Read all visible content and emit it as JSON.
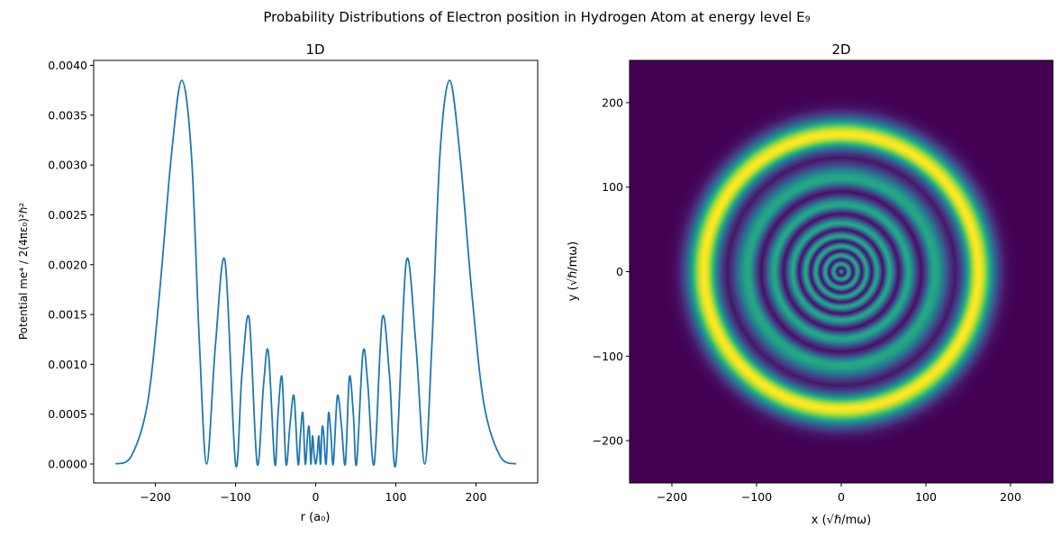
{
  "figure": {
    "suptitle": "Probability Distributions of Electron position in Hydrogen Atom at energy level E₉"
  },
  "chart_data": [
    {
      "type": "line",
      "title": "1D",
      "xlabel": "r (a₀)",
      "ylabel": "Potential me⁴ / 2(4πε₀)²ℏ²",
      "xlim": [
        -277,
        277
      ],
      "ylim": [
        -0.00019,
        0.00405
      ],
      "x_ticks": [
        -200,
        -100,
        0,
        100,
        200
      ],
      "y_ticks": [
        0.0,
        0.0005,
        0.001,
        0.0015,
        0.002,
        0.0025,
        0.003,
        0.0035,
        0.004
      ],
      "y_tick_labels": [
        "0.0000",
        "0.0005",
        "0.0010",
        "0.0015",
        "0.0020",
        "0.0025",
        "0.0030",
        "0.0035",
        "0.0040"
      ],
      "color": "#1f77b4",
      "series": [
        {
          "x": [
            -250,
            -230,
            -210,
            -195,
            -180,
            -167,
            -155,
            -145,
            -136,
            -125,
            -113,
            -100,
            -92,
            -83,
            -73,
            -65,
            -59,
            -51,
            -47,
            -42,
            -37,
            -32,
            -27,
            -22,
            -19,
            -16,
            -13,
            -10,
            -8,
            -6,
            -4,
            -2,
            0,
            2,
            4,
            6,
            8,
            10,
            13,
            16,
            19,
            22,
            27,
            32,
            37,
            42,
            47,
            51,
            59,
            65,
            73,
            83,
            92,
            100,
            113,
            125,
            136,
            145,
            155,
            167,
            180,
            195,
            210,
            230,
            250
          ],
          "y": [
            0.0,
            8e-05,
            0.0006,
            0.0017,
            0.0031,
            0.00385,
            0.0031,
            0.0012,
            0.0,
            0.0012,
            0.00203,
            0.0,
            0.0009,
            0.00146,
            0.0,
            0.0008,
            0.00112,
            0.0,
            0.0005,
            0.00087,
            0.0,
            0.0004,
            0.00068,
            0.0,
            0.0003,
            0.00051,
            0.0,
            0.0003,
            0.00036,
            0.0,
            0.00028,
            0.0001,
            0.0,
            0.0001,
            0.00028,
            0.0,
            0.00036,
            0.0003,
            0.0,
            0.00051,
            0.0003,
            0.0,
            0.00068,
            0.0004,
            0.0,
            0.00087,
            0.0005,
            0.0,
            0.00112,
            0.0008,
            0.0,
            0.00146,
            0.0009,
            0.0,
            0.00203,
            0.0012,
            0.0,
            0.0012,
            0.0031,
            0.00385,
            0.0031,
            0.0017,
            0.0006,
            8e-05,
            0.0
          ]
        }
      ]
    },
    {
      "type": "heatmap",
      "title": "2D",
      "xlabel": "x (√ℏ/mω)",
      "ylabel": "y (√ℏ/mω)",
      "xlim": [
        -250,
        250
      ],
      "ylim": [
        -250,
        250
      ],
      "x_ticks": [
        -200,
        -100,
        0,
        100,
        200
      ],
      "y_ticks": [
        -200,
        -100,
        0,
        100,
        200
      ],
      "colormap": "viridis",
      "rings": [
        {
          "r": 0,
          "intensity": 0.55
        },
        {
          "r": 9,
          "intensity": 0.6
        },
        {
          "r": 19,
          "intensity": 0.6
        },
        {
          "r": 30,
          "intensity": 0.6
        },
        {
          "r": 42,
          "intensity": 0.6
        },
        {
          "r": 57,
          "intensity": 0.6
        },
        {
          "r": 79,
          "intensity": 0.6
        },
        {
          "r": 110,
          "intensity": 0.6
        },
        {
          "r": 162,
          "intensity": 1.0
        }
      ]
    }
  ]
}
